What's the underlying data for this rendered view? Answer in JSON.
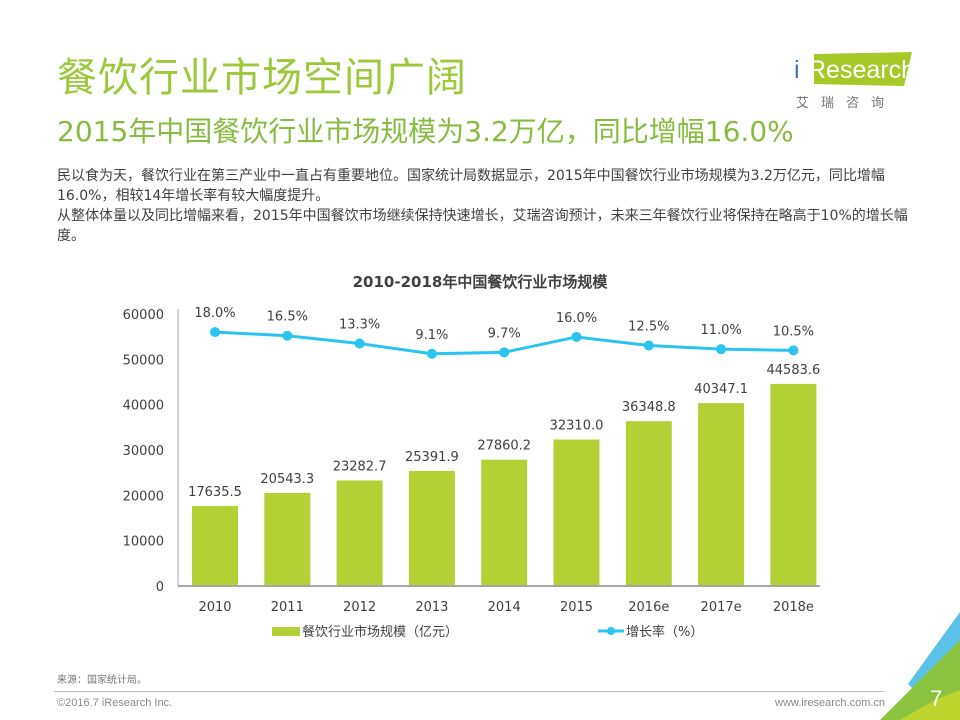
{
  "header": {
    "title": "餐饮行业市场空间广阔",
    "subtitle": "2015年中国餐饮行业市场规模为3.2万亿，同比增幅16.0%"
  },
  "logo": {
    "brand": "Research",
    "brand_i": "i",
    "cn": "艾瑞咨询",
    "accent": "#a7c928",
    "dot": "#3d6fbd"
  },
  "body": {
    "paragraphs": [
      "民以食为天，餐饮行业在第三产业中一直占有重要地位。国家统计局数据显示，2015年中国餐饮行业市场规模为3.2万亿元，同比增幅16.0%，相较14年增长率有较大幅度提升。",
      "从整体体量以及同比增幅来看，2015年中国餐饮市场继续保持快速增长，艾瑞咨询预计，未来三年餐饮行业将保持在略高于10%的增长幅度。"
    ]
  },
  "chart_data": {
    "type": "bar",
    "title": "2010-2018年中国餐饮行业市场规模",
    "categories": [
      "2010",
      "2011",
      "2012",
      "2013",
      "2014",
      "2015",
      "2016e",
      "2017e",
      "2018e"
    ],
    "series": [
      {
        "name": "餐饮行业市场规模（亿元）",
        "type": "bar",
        "color": "#b3d135",
        "values": [
          17635.5,
          20543.3,
          23282.7,
          25391.9,
          27860.2,
          32310.0,
          36348.8,
          40347.1,
          44583.6
        ],
        "labels": [
          "17635.5",
          "20543.3",
          "23282.7",
          "25391.9",
          "27860.2",
          "32310.0",
          "36348.8",
          "40347.1",
          "44583.6"
        ]
      },
      {
        "name": "增长率（%）",
        "type": "line",
        "color": "#29c4ef",
        "values": [
          18.0,
          16.5,
          13.3,
          9.1,
          9.7,
          16.0,
          12.5,
          11.0,
          10.5
        ],
        "labels": [
          "18.0%",
          "16.5%",
          "13.3%",
          "9.1%",
          "9.7%",
          "16.0%",
          "12.5%",
          "11.0%",
          "10.5%"
        ]
      }
    ],
    "yticks": [
      "0",
      "10000",
      "20000",
      "30000",
      "40000",
      "50000",
      "60000"
    ],
    "ylim": [
      0,
      60000
    ],
    "xlabel": "",
    "ylabel": "",
    "grid": false,
    "legend": "bottom"
  },
  "footer": {
    "source": "来源：国家统计局。",
    "copyright": "©2016.7 iResearch Inc.",
    "url": "www.iresearch.com.cn",
    "page": "7"
  }
}
